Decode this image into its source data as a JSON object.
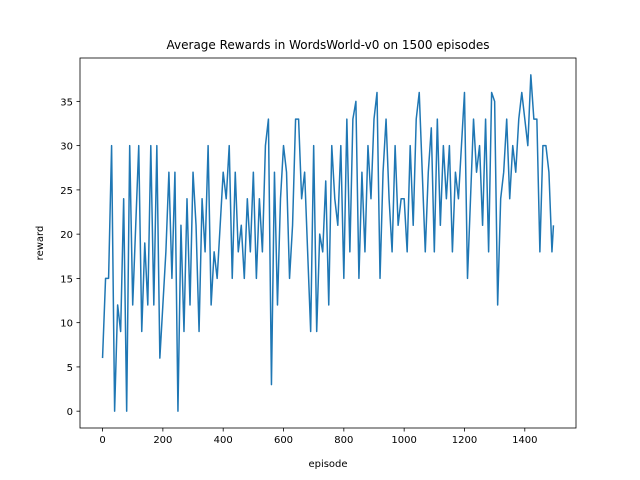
{
  "chart_data": {
    "type": "line",
    "title": "Average Rewards in WordsWorld-v0 on 1500 episodes",
    "x_label": "episode",
    "y_label": "reward",
    "x": [
      0,
      10,
      20,
      30,
      40,
      50,
      60,
      70,
      80,
      90,
      100,
      110,
      120,
      130,
      140,
      150,
      160,
      170,
      180,
      190,
      200,
      210,
      220,
      230,
      240,
      250,
      260,
      270,
      280,
      290,
      300,
      310,
      320,
      330,
      340,
      350,
      360,
      370,
      380,
      390,
      400,
      410,
      420,
      430,
      440,
      450,
      460,
      470,
      480,
      490,
      500,
      510,
      520,
      530,
      540,
      550,
      560,
      570,
      580,
      590,
      600,
      610,
      620,
      630,
      640,
      650,
      660,
      670,
      680,
      690,
      700,
      710,
      720,
      730,
      740,
      750,
      760,
      770,
      780,
      790,
      800,
      810,
      820,
      830,
      840,
      850,
      860,
      870,
      880,
      890,
      900,
      910,
      920,
      930,
      940,
      950,
      960,
      970,
      980,
      990,
      1000,
      1010,
      1020,
      1030,
      1040,
      1050,
      1060,
      1070,
      1080,
      1090,
      1100,
      1110,
      1120,
      1130,
      1140,
      1150,
      1160,
      1170,
      1180,
      1190,
      1200,
      1210,
      1220,
      1230,
      1240,
      1250,
      1260,
      1270,
      1280,
      1290,
      1300,
      1310,
      1320,
      1330,
      1340,
      1350,
      1360,
      1370,
      1380,
      1390,
      1400,
      1410,
      1420,
      1430,
      1440,
      1450,
      1460,
      1470,
      1480,
      1490,
      1495
    ],
    "series": [
      {
        "name": "reward",
        "color": "#1f77b4",
        "values": [
          6,
          15,
          15,
          30,
          0,
          12,
          9,
          24,
          0,
          30,
          12,
          21,
          30,
          9,
          19,
          12,
          30,
          12,
          30,
          6,
          12,
          18,
          27,
          15,
          27,
          0,
          21,
          9,
          24,
          12,
          27,
          21,
          9,
          24,
          18,
          30,
          12,
          18,
          15,
          21,
          27,
          24,
          30,
          15,
          27,
          18,
          21,
          15,
          24,
          18,
          27,
          15,
          24,
          18,
          30,
          33,
          3,
          27,
          12,
          24,
          30,
          27,
          15,
          21,
          33,
          33,
          24,
          27,
          18,
          9,
          30,
          9,
          20,
          18,
          26,
          12,
          30,
          24,
          21,
          30,
          15,
          33,
          18,
          33,
          35,
          15,
          27,
          18,
          30,
          24,
          33,
          36,
          15,
          27,
          33,
          24,
          18,
          30,
          21,
          24,
          24,
          18,
          30,
          21,
          33,
          36,
          27,
          18,
          27,
          32,
          18,
          33,
          21,
          30,
          24,
          30,
          18,
          27,
          24,
          30,
          36,
          15,
          24,
          33,
          27,
          30,
          21,
          33,
          18,
          36,
          35,
          12,
          24,
          27,
          33,
          24,
          30,
          27,
          33,
          36,
          33,
          30,
          38,
          33,
          33,
          18,
          30,
          30,
          27,
          18,
          21
        ]
      }
    ],
    "xlim": [
      -74.75,
      1569.75
    ],
    "ylim": [
      -1.9,
      39.9
    ],
    "xticks": [
      0,
      200,
      400,
      600,
      800,
      1000,
      1200,
      1400
    ],
    "yticks": [
      0,
      5,
      10,
      15,
      20,
      25,
      30,
      35
    ]
  }
}
